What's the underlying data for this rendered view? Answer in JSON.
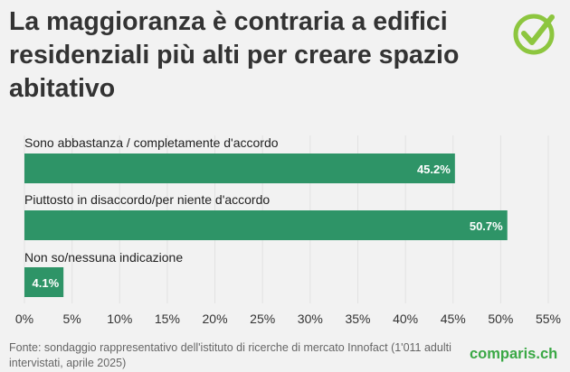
{
  "title": "La maggioranza è contraria a edifici residenziali più alti per creare spazio abitativo",
  "source": "Fonte: sondaggio rappresentativo dell'istituto di ricerche di mercato Innofact (1'011 adulti intervistati, aprile 2025)",
  "brand": "comparis.ch",
  "icons": {
    "logo": "check-mark-circle-icon"
  },
  "colors": {
    "bar": "#2e9467",
    "brand": "#3aa845",
    "background": "#f2f2f2"
  },
  "chart_data": {
    "type": "bar",
    "orientation": "horizontal",
    "categories": [
      "Sono abbastanza / completamente d'accordo",
      "Piuttosto in disaccordo/per niente d'accordo",
      "Non so/nessuna indicazione"
    ],
    "values": [
      45.2,
      50.7,
      4.1
    ],
    "value_labels": [
      "45.2%",
      "50.7%",
      "4.1%"
    ],
    "xlim": [
      0,
      55
    ],
    "xticks": [
      "0%",
      "5%",
      "10%",
      "15%",
      "20%",
      "25%",
      "30%",
      "35%",
      "40%",
      "45%",
      "50%",
      "55%"
    ],
    "grid": true,
    "legend": "none"
  }
}
